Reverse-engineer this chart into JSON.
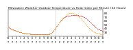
{
  "title": "Milwaukee Weather Outdoor Temperature vs Heat Index per Minute (24 Hours)",
  "title_fontsize": 3.2,
  "bg_color": "#ffffff",
  "temp_color": "#dd0000",
  "heat_color": "#ff9900",
  "vline_x": 720,
  "ylabel_fontsize": 3.0,
  "xlabel_fontsize": 2.5,
  "ylim": [
    20,
    90
  ],
  "xlim": [
    0,
    1440
  ],
  "yticks": [
    30,
    40,
    50,
    60,
    70,
    80
  ],
  "x_tick_every": 60,
  "temp_data": [
    45,
    44,
    43,
    42,
    41,
    40,
    40,
    39,
    39,
    38,
    38,
    37,
    37,
    36,
    36,
    35,
    35,
    35,
    34,
    34,
    34,
    33,
    33,
    33,
    32,
    32,
    32,
    31,
    31,
    31,
    30,
    30,
    30,
    30,
    29,
    29,
    29,
    29,
    28,
    28,
    28,
    28,
    28,
    27,
    27,
    27,
    27,
    27,
    27,
    26,
    26,
    26,
    26,
    26,
    26,
    26,
    25,
    25,
    25,
    25,
    25,
    25,
    25,
    25,
    25,
    25,
    24,
    24,
    24,
    24,
    24,
    24,
    24,
    24,
    24,
    24,
    24,
    24,
    24,
    24,
    24,
    24,
    24,
    24,
    24,
    24,
    24,
    24,
    24,
    24,
    24,
    24,
    24,
    24,
    24,
    24,
    24,
    25,
    25,
    25,
    25,
    25,
    25,
    25,
    26,
    26,
    27,
    27,
    28,
    29,
    30,
    31,
    32,
    33,
    34,
    36,
    37,
    38,
    40,
    41,
    43,
    44,
    46,
    47,
    49,
    50,
    52,
    53,
    55,
    56,
    58,
    59,
    61,
    62,
    63,
    64,
    65,
    66,
    67,
    68,
    69,
    70,
    70,
    71,
    72,
    72,
    73,
    73,
    73,
    74,
    74,
    74,
    75,
    75,
    75,
    75,
    75,
    75,
    75,
    76,
    76,
    76,
    76,
    76,
    76,
    76,
    76,
    76,
    76,
    76,
    76,
    76,
    76,
    76,
    76,
    76,
    76,
    76,
    75,
    75,
    75,
    75,
    75,
    74,
    74,
    74,
    73,
    73,
    72,
    72,
    71,
    71,
    70,
    70,
    69,
    68,
    68,
    67,
    66,
    65,
    64,
    63,
    62,
    61,
    60,
    59,
    58,
    57,
    56,
    55,
    54,
    53,
    52,
    51,
    50,
    49,
    48,
    47,
    46,
    45,
    44,
    43,
    43,
    42,
    41,
    40,
    40,
    39,
    38,
    38,
    37,
    37,
    36,
    36,
    35,
    35,
    35,
    34,
    34,
    34
  ],
  "heat_data": [
    44,
    43,
    42,
    41,
    40,
    40,
    39,
    39,
    38,
    38,
    37,
    37,
    36,
    36,
    35,
    35,
    35,
    34,
    34,
    34,
    34,
    33,
    33,
    33,
    32,
    32,
    32,
    31,
    31,
    31,
    30,
    30,
    30,
    30,
    29,
    29,
    29,
    29,
    28,
    28,
    28,
    28,
    28,
    27,
    27,
    27,
    27,
    27,
    27,
    26,
    26,
    26,
    26,
    26,
    26,
    26,
    25,
    25,
    25,
    25,
    25,
    25,
    25,
    25,
    25,
    25,
    24,
    24,
    24,
    24,
    24,
    24,
    24,
    24,
    24,
    24,
    24,
    24,
    24,
    24,
    24,
    24,
    24,
    24,
    24,
    24,
    24,
    24,
    24,
    24,
    24,
    24,
    24,
    24,
    24,
    24,
    24,
    25,
    25,
    25,
    25,
    25,
    25,
    25,
    26,
    26,
    27,
    27,
    28,
    29,
    30,
    31,
    32,
    33,
    34,
    36,
    37,
    38,
    40,
    41,
    43,
    44,
    46,
    47,
    49,
    50,
    52,
    53,
    55,
    56,
    58,
    59,
    61,
    62,
    63,
    64,
    65,
    66,
    67,
    68,
    69,
    70,
    71,
    72,
    73,
    74,
    75,
    76,
    77,
    78,
    79,
    80,
    80,
    81,
    81,
    81,
    81,
    81,
    81,
    81,
    81,
    81,
    81,
    81,
    81,
    80,
    80,
    80,
    80,
    79,
    79,
    78,
    78,
    77,
    76,
    75,
    74,
    73,
    72,
    71,
    70,
    69,
    68,
    67,
    66,
    65,
    63,
    62,
    61,
    60,
    59,
    57,
    56,
    55,
    54,
    52,
    51,
    50,
    49,
    47,
    46,
    45,
    44,
    43,
    42,
    41,
    40,
    39,
    38,
    37,
    36,
    35,
    34,
    34,
    33,
    32,
    32,
    31,
    31,
    30,
    30,
    29,
    29,
    28,
    28,
    28,
    27,
    27,
    27,
    26,
    26,
    26,
    26,
    25,
    25,
    25,
    25,
    25,
    24,
    24
  ]
}
